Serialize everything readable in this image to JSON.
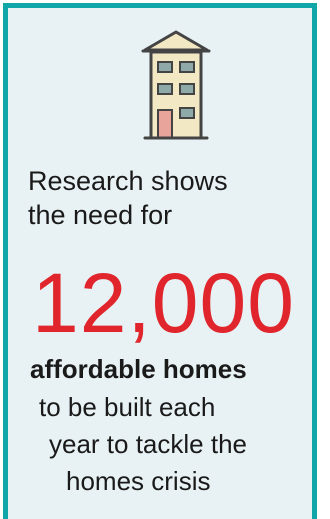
{
  "card": {
    "border_color": "#0fa6a8",
    "background": "#e8f2f4",
    "icon": "apartment-building-icon",
    "intro_line_1": "Research shows",
    "intro_line_2": "the need for",
    "headline_number": "12,000",
    "headline_number_color": "#e0262c",
    "bold_line": "affordable homes",
    "tail_line_1": "to be built each",
    "tail_line_2": "year to tackle the",
    "tail_line_3": "homes crisis"
  }
}
